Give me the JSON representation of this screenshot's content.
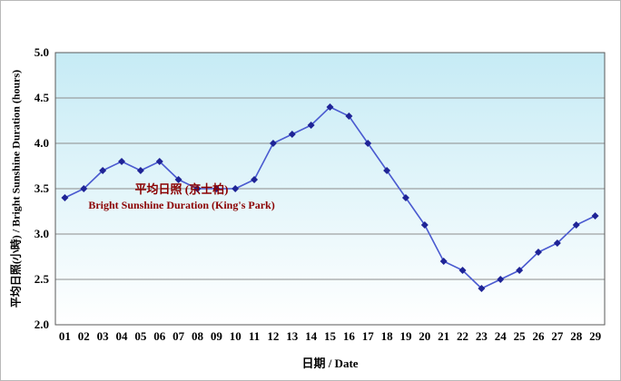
{
  "chart_data": {
    "type": "line",
    "x": [
      "01",
      "02",
      "03",
      "04",
      "05",
      "06",
      "07",
      "08",
      "09",
      "10",
      "11",
      "12",
      "13",
      "14",
      "15",
      "16",
      "17",
      "18",
      "19",
      "20",
      "21",
      "22",
      "23",
      "24",
      "25",
      "26",
      "27",
      "28",
      "29"
    ],
    "values": [
      3.4,
      3.5,
      3.7,
      3.8,
      3.7,
      3.8,
      3.6,
      3.5,
      3.5,
      3.5,
      3.6,
      4.0,
      4.1,
      4.2,
      4.4,
      4.3,
      4.0,
      3.7,
      3.4,
      3.1,
      2.7,
      2.6,
      2.4,
      2.5,
      2.6,
      2.8,
      2.9,
      3.1,
      3.2
    ],
    "title": "",
    "xlabel": "日期 / Date",
    "ylabel": "平均日照(小時) / Bright Sunshine Duration (hours)",
    "ylim": [
      2.0,
      5.0
    ],
    "ytick_step": 0.5,
    "grid": true,
    "legend_position": "none",
    "annotation": {
      "line1": "平均日照 (京士柏)",
      "line2": "Bright Sunshine Duration (King's Park)"
    },
    "colors": {
      "line": "#4a5ad0",
      "marker": "#1f2496",
      "grid": "#8c8c8c",
      "border": "#5a5a5a",
      "plot_bg_top": "#c6ebf5",
      "plot_bg_bottom": "#ffffff",
      "annotation": "#8b0000",
      "text": "#000000"
    }
  }
}
